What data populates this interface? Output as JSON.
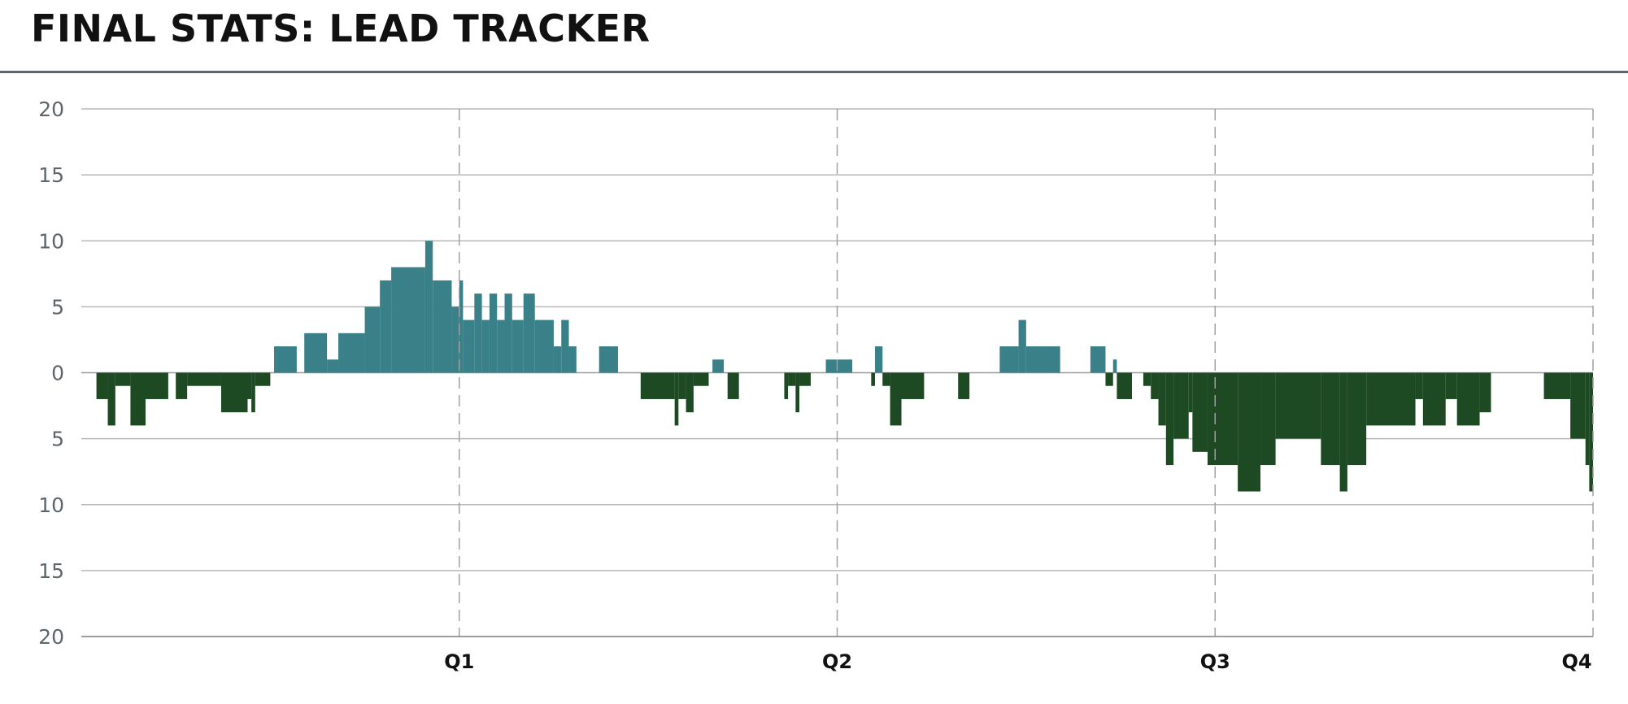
{
  "header": {
    "title": "FINAL STATS: LEAD TRACKER"
  },
  "colors": {
    "positive": "#3a8089",
    "negative": "#1e4a23",
    "grid": "#b9b9b9",
    "axis": "#888888"
  },
  "chart_data": {
    "type": "area",
    "title": "FINAL STATS: LEAD TRACKER",
    "xlabel": "",
    "ylabel": "",
    "xlim": [
      0,
      4
    ],
    "ylim": [
      -20,
      20
    ],
    "x_ticks": [
      "Q1",
      "Q2",
      "Q3",
      "Q4"
    ],
    "y_ticks": [
      20,
      15,
      10,
      5,
      0,
      5,
      10,
      15,
      20
    ],
    "y_tick_values": [
      20,
      15,
      10,
      5,
      0,
      -5,
      -10,
      -15,
      -20
    ],
    "grid": true,
    "series": [
      {
        "values": [
          [
            0.04,
            -2
          ],
          [
            0.07,
            -4
          ],
          [
            0.09,
            -1
          ],
          [
            0.13,
            -4
          ],
          [
            0.17,
            -2
          ],
          [
            0.23,
            0
          ],
          [
            0.25,
            -2
          ],
          [
            0.28,
            -1
          ],
          [
            0.37,
            -3
          ],
          [
            0.44,
            -2
          ],
          [
            0.45,
            -3
          ],
          [
            0.46,
            -1
          ],
          [
            0.5,
            0
          ],
          [
            0.51,
            2
          ],
          [
            0.57,
            0
          ],
          [
            0.59,
            3
          ],
          [
            0.65,
            1
          ],
          [
            0.68,
            3
          ],
          [
            0.75,
            5
          ],
          [
            0.79,
            7
          ],
          [
            0.82,
            8
          ],
          [
            0.91,
            10
          ],
          [
            0.93,
            7
          ],
          [
            0.98,
            5
          ],
          [
            1.0,
            7
          ],
          [
            1.01,
            4
          ],
          [
            1.04,
            6
          ],
          [
            1.06,
            4
          ],
          [
            1.08,
            6
          ],
          [
            1.1,
            4
          ],
          [
            1.12,
            6
          ],
          [
            1.14,
            4
          ],
          [
            1.17,
            6
          ],
          [
            1.2,
            4
          ],
          [
            1.25,
            2
          ],
          [
            1.27,
            4
          ],
          [
            1.29,
            2
          ],
          [
            1.31,
            0
          ],
          [
            1.37,
            2
          ],
          [
            1.42,
            0
          ],
          [
            1.48,
            -2
          ],
          [
            1.57,
            -4
          ],
          [
            1.58,
            -2
          ],
          [
            1.6,
            -3
          ],
          [
            1.62,
            -1
          ],
          [
            1.66,
            0
          ],
          [
            1.67,
            1
          ],
          [
            1.7,
            0
          ],
          [
            1.71,
            -2
          ],
          [
            1.74,
            0
          ],
          [
            1.86,
            -2
          ],
          [
            1.87,
            -1
          ],
          [
            1.89,
            -3
          ],
          [
            1.9,
            -1
          ],
          [
            1.93,
            0
          ],
          [
            1.97,
            1
          ],
          [
            2.04,
            0
          ],
          [
            2.09,
            -1
          ],
          [
            2.1,
            2
          ],
          [
            2.12,
            -1
          ],
          [
            2.14,
            -4
          ],
          [
            2.17,
            -2
          ],
          [
            2.23,
            0
          ],
          [
            2.32,
            -2
          ],
          [
            2.35,
            0
          ],
          [
            2.43,
            2
          ],
          [
            2.48,
            4
          ],
          [
            2.5,
            2
          ],
          [
            2.59,
            0
          ],
          [
            2.67,
            2
          ],
          [
            2.71,
            -1
          ],
          [
            2.73,
            1
          ],
          [
            2.74,
            -2
          ],
          [
            2.78,
            0
          ],
          [
            2.81,
            -1
          ],
          [
            2.83,
            -2
          ],
          [
            2.85,
            -4
          ],
          [
            2.87,
            -7
          ],
          [
            2.89,
            -5
          ],
          [
            2.93,
            -3
          ],
          [
            2.94,
            -6
          ],
          [
            2.98,
            -7
          ],
          [
            3.06,
            -9
          ],
          [
            3.12,
            -7
          ],
          [
            3.16,
            -5
          ],
          [
            3.28,
            -7
          ],
          [
            3.33,
            -9
          ],
          [
            3.35,
            -7
          ],
          [
            3.4,
            -4
          ],
          [
            3.53,
            -2
          ],
          [
            3.55,
            -4
          ],
          [
            3.61,
            -2
          ],
          [
            3.64,
            -4
          ],
          [
            3.7,
            -3
          ],
          [
            3.73,
            0
          ],
          [
            3.87,
            -2
          ],
          [
            3.94,
            -5
          ],
          [
            3.98,
            -7
          ],
          [
            3.99,
            -9
          ],
          [
            4.0,
            -9
          ]
        ]
      }
    ]
  }
}
